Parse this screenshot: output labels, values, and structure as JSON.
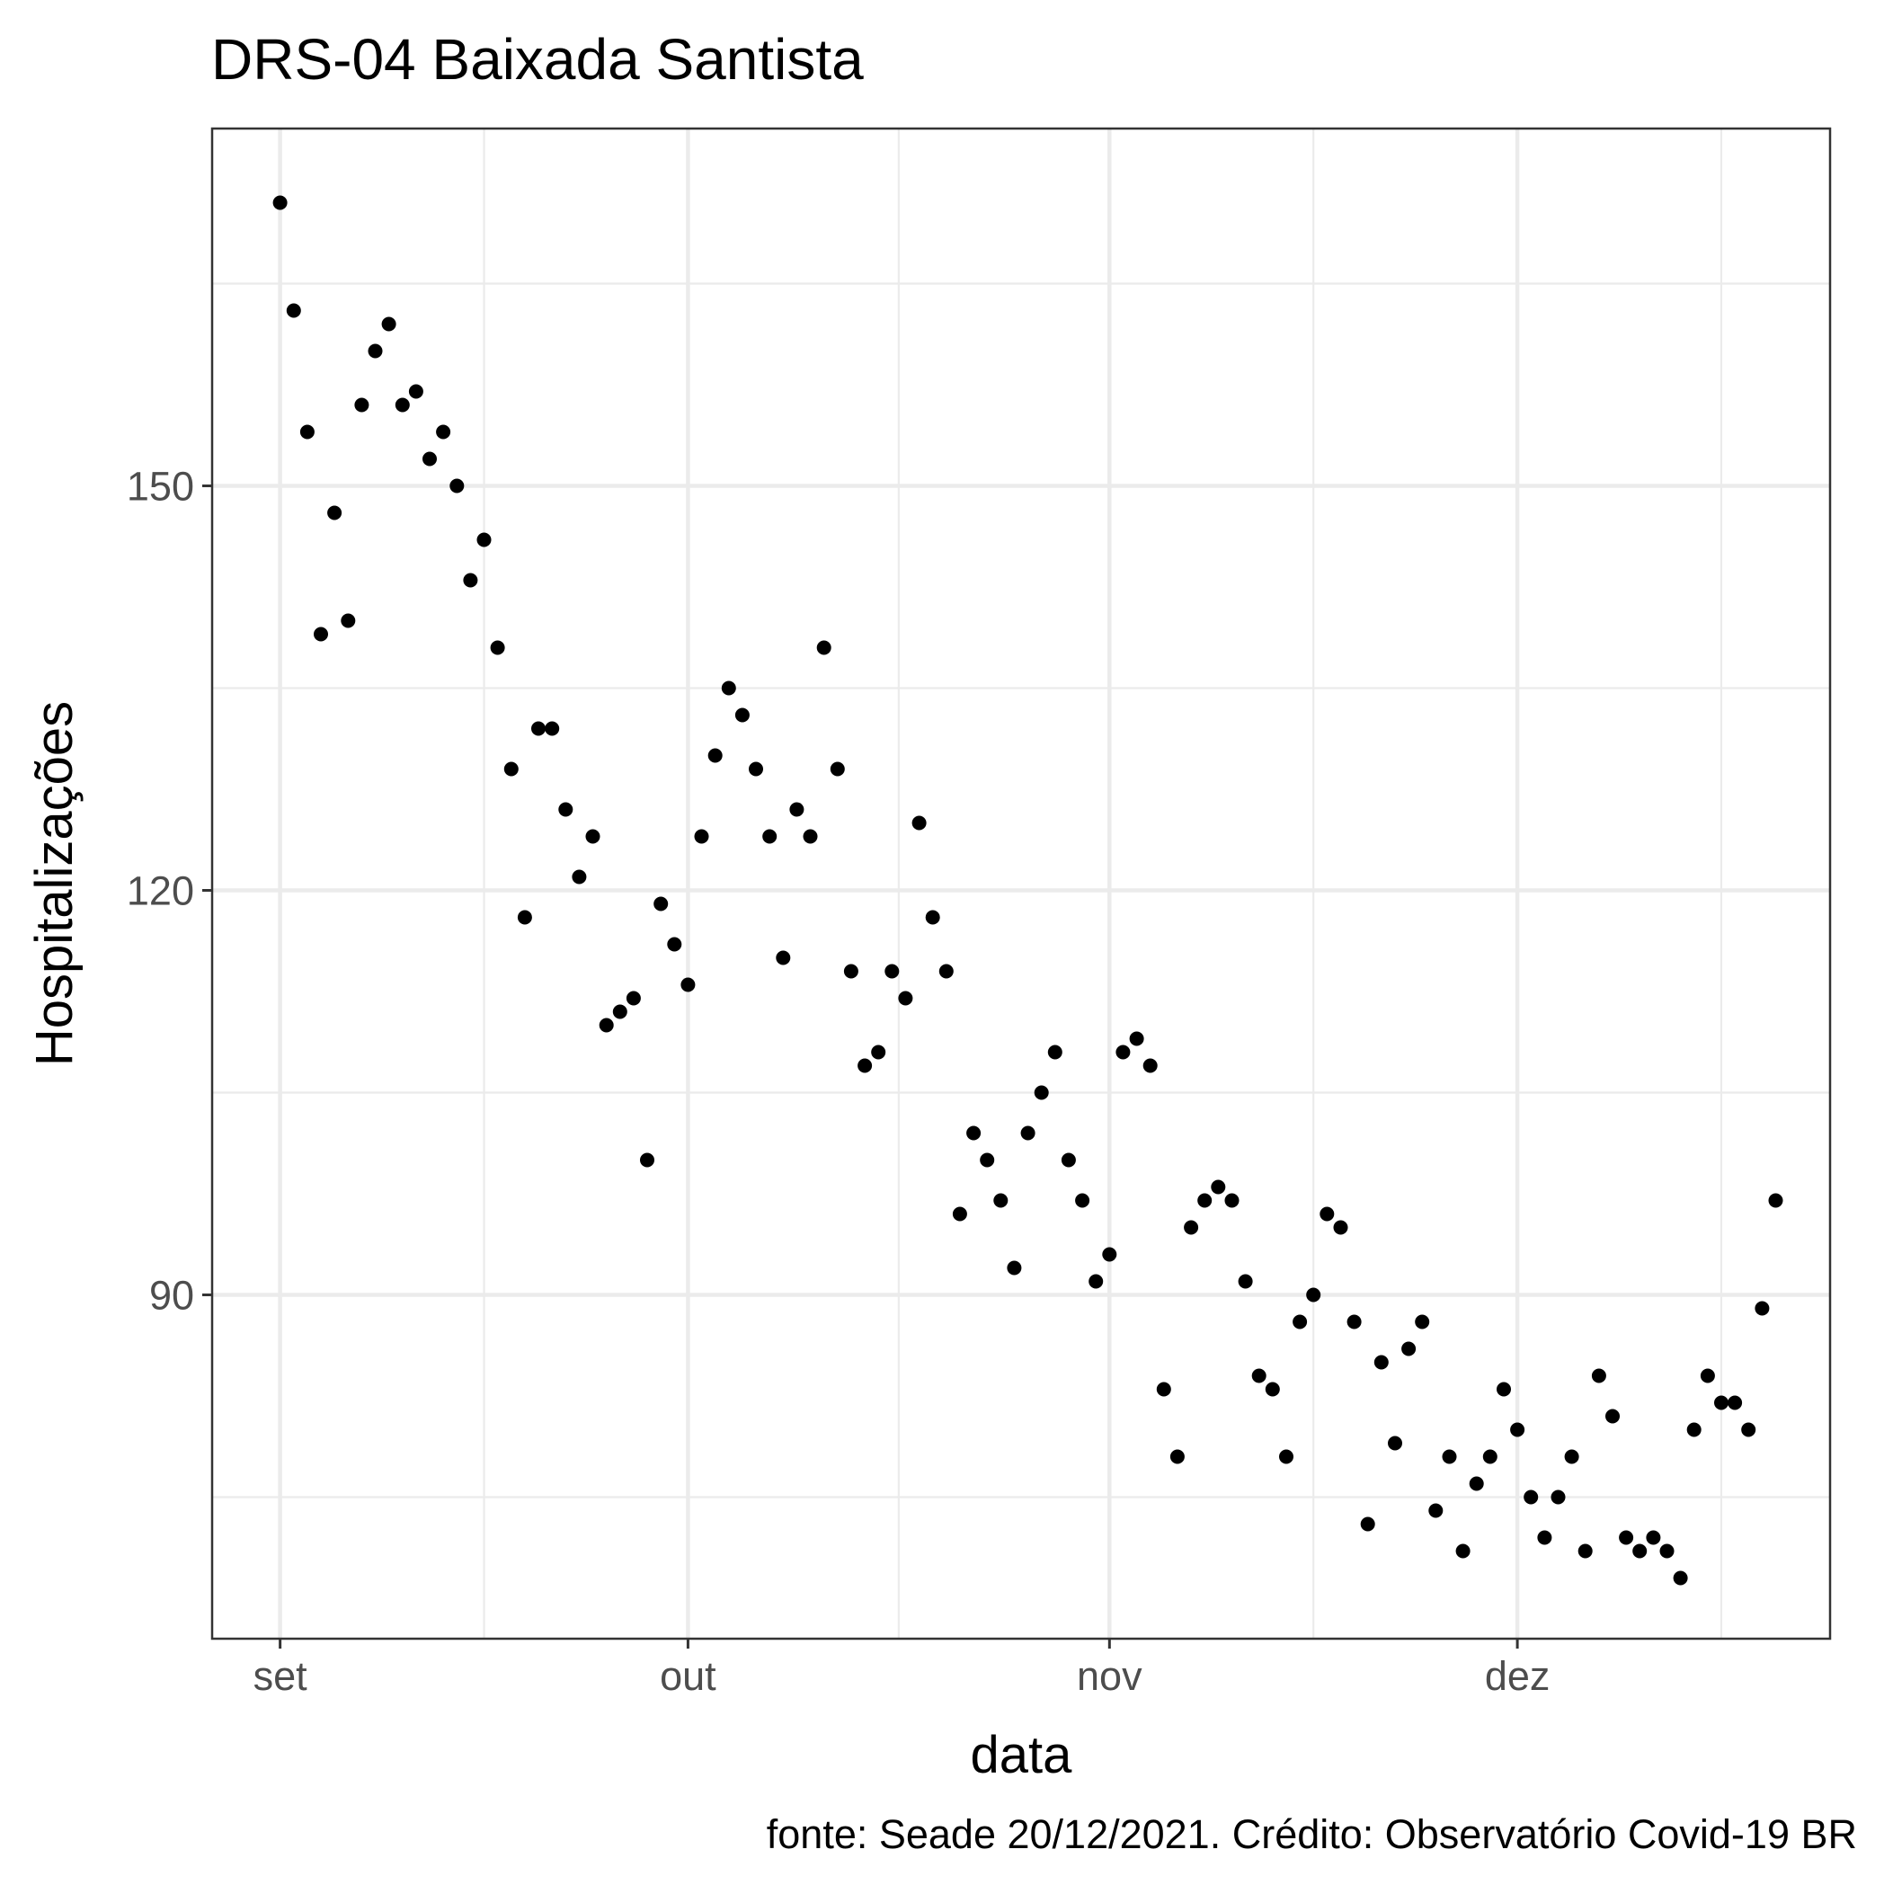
{
  "chart_data": {
    "type": "scatter",
    "title": "DRS-04 Baixada Santista",
    "xlabel": "data",
    "ylabel": "Hospitalizações",
    "caption": "fonte: Seade 20/12/2021. Crédito: Observatório Covid-19 BR",
    "xlim": [
      "2021-08-27",
      "2021-12-24"
    ],
    "ylim": [
      64.5,
      176.5
    ],
    "x_ticks": [
      {
        "date": "2021-09-01",
        "label": "set"
      },
      {
        "date": "2021-10-01",
        "label": "out"
      },
      {
        "date": "2021-11-01",
        "label": "nov"
      },
      {
        "date": "2021-12-01",
        "label": "dez"
      }
    ],
    "y_ticks": [
      90,
      120,
      150
    ],
    "grid": true,
    "x": [
      "2021-09-01",
      "2021-09-02",
      "2021-09-03",
      "2021-09-04",
      "2021-09-05",
      "2021-09-06",
      "2021-09-07",
      "2021-09-08",
      "2021-09-09",
      "2021-09-10",
      "2021-09-11",
      "2021-09-12",
      "2021-09-13",
      "2021-09-14",
      "2021-09-15",
      "2021-09-16",
      "2021-09-17",
      "2021-09-18",
      "2021-09-19",
      "2021-09-20",
      "2021-09-21",
      "2021-09-22",
      "2021-09-23",
      "2021-09-24",
      "2021-09-25",
      "2021-09-26",
      "2021-09-27",
      "2021-09-28",
      "2021-09-29",
      "2021-09-30",
      "2021-10-01",
      "2021-10-02",
      "2021-10-03",
      "2021-10-04",
      "2021-10-05",
      "2021-10-06",
      "2021-10-07",
      "2021-10-08",
      "2021-10-09",
      "2021-10-10",
      "2021-10-11",
      "2021-10-12",
      "2021-10-13",
      "2021-10-14",
      "2021-10-15",
      "2021-10-16",
      "2021-10-17",
      "2021-10-18",
      "2021-10-19",
      "2021-10-20",
      "2021-10-21",
      "2021-10-22",
      "2021-10-23",
      "2021-10-24",
      "2021-10-25",
      "2021-10-26",
      "2021-10-27",
      "2021-10-28",
      "2021-10-29",
      "2021-10-30",
      "2021-10-31",
      "2021-11-01",
      "2021-11-02",
      "2021-11-03",
      "2021-11-04",
      "2021-11-05",
      "2021-11-06",
      "2021-11-07",
      "2021-11-08",
      "2021-11-09",
      "2021-11-10",
      "2021-11-11",
      "2021-11-12",
      "2021-11-13",
      "2021-11-14",
      "2021-11-15",
      "2021-11-16",
      "2021-11-17",
      "2021-11-18",
      "2021-11-19",
      "2021-11-20",
      "2021-11-21",
      "2021-11-22",
      "2021-11-23",
      "2021-11-24",
      "2021-11-25",
      "2021-11-26",
      "2021-11-27",
      "2021-11-28",
      "2021-11-29",
      "2021-11-30",
      "2021-12-01",
      "2021-12-02",
      "2021-12-03",
      "2021-12-04",
      "2021-12-05",
      "2021-12-06",
      "2021-12-07",
      "2021-12-08",
      "2021-12-09",
      "2021-12-10",
      "2021-12-11",
      "2021-12-12",
      "2021-12-13",
      "2021-12-14",
      "2021-12-15",
      "2021-12-16",
      "2021-12-17",
      "2021-12-18",
      "2021-12-19",
      "2021-12-20"
    ],
    "y": [
      171,
      163,
      154,
      139,
      148,
      140,
      156,
      160,
      162,
      156,
      157,
      152,
      154,
      150,
      143,
      146,
      138,
      129,
      118,
      132,
      132,
      126,
      121,
      124,
      110,
      111,
      112,
      100,
      119,
      116,
      113,
      124,
      130,
      135,
      133,
      129,
      124,
      115,
      126,
      124,
      138,
      129,
      114,
      107,
      108,
      114,
      112,
      125,
      118,
      114,
      96,
      102,
      100,
      97,
      92,
      102,
      105,
      108,
      100,
      97,
      91,
      93,
      108,
      109,
      107,
      83,
      78,
      95,
      97,
      98,
      97,
      91,
      84,
      83,
      78,
      88,
      90,
      96,
      95,
      88,
      73,
      85,
      79,
      86,
      88,
      74,
      78,
      71,
      76,
      78,
      83,
      80,
      75,
      72,
      75,
      78,
      71,
      84,
      81,
      72,
      71,
      72,
      71,
      69,
      80,
      84,
      82,
      82,
      80,
      89,
      97
    ]
  }
}
